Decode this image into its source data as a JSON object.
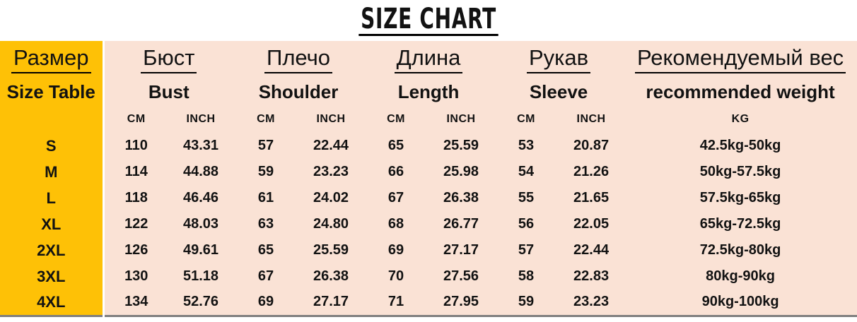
{
  "title": "SIZE CHART",
  "colors": {
    "accent_yellow": "#FEC106",
    "table_pink": "#FAE2D5",
    "bottom_border_gray": "#7f7f7f",
    "text_black": "#121212"
  },
  "header": {
    "size_ru": "Размер",
    "size_en": "Size Table",
    "groups": [
      {
        "ru": "Бюст",
        "en": "Bust"
      },
      {
        "ru": "Плечо",
        "en": "Shoulder"
      },
      {
        "ru": "Длина",
        "en": "Length"
      },
      {
        "ru": "Рукав",
        "en": "Sleeve"
      }
    ],
    "weight_ru": "Рекомендуемый вес",
    "weight_en": "recommended weight",
    "unit_cm": "CM",
    "unit_inch": "INCH",
    "unit_kg": "KG"
  },
  "chart_data": {
    "type": "table",
    "title": "SIZE CHART",
    "columns": [
      "Size",
      "Bust CM",
      "Bust INCH",
      "Shoulder CM",
      "Shoulder INCH",
      "Length CM",
      "Length INCH",
      "Sleeve CM",
      "Sleeve INCH",
      "recommended weight KG"
    ],
    "rows": [
      {
        "size": "S",
        "bust_cm": "110",
        "bust_in": "43.31",
        "shoulder_cm": "57",
        "shoulder_in": "22.44",
        "length_cm": "65",
        "length_in": "25.59",
        "sleeve_cm": "53",
        "sleeve_in": "20.87",
        "weight": "42.5kg-50kg"
      },
      {
        "size": "M",
        "bust_cm": "114",
        "bust_in": "44.88",
        "shoulder_cm": "59",
        "shoulder_in": "23.23",
        "length_cm": "66",
        "length_in": "25.98",
        "sleeve_cm": "54",
        "sleeve_in": "21.26",
        "weight": "50kg-57.5kg"
      },
      {
        "size": "L",
        "bust_cm": "118",
        "bust_in": "46.46",
        "shoulder_cm": "61",
        "shoulder_in": "24.02",
        "length_cm": "67",
        "length_in": "26.38",
        "sleeve_cm": "55",
        "sleeve_in": "21.65",
        "weight": "57.5kg-65kg"
      },
      {
        "size": "XL",
        "bust_cm": "122",
        "bust_in": "48.03",
        "shoulder_cm": "63",
        "shoulder_in": "24.80",
        "length_cm": "68",
        "length_in": "26.77",
        "sleeve_cm": "56",
        "sleeve_in": "22.05",
        "weight": "65kg-72.5kg"
      },
      {
        "size": "2XL",
        "bust_cm": "126",
        "bust_in": "49.61",
        "shoulder_cm": "65",
        "shoulder_in": "25.59",
        "length_cm": "69",
        "length_in": "27.17",
        "sleeve_cm": "57",
        "sleeve_in": "22.44",
        "weight": "72.5kg-80kg"
      },
      {
        "size": "3XL",
        "bust_cm": "130",
        "bust_in": "51.18",
        "shoulder_cm": "67",
        "shoulder_in": "26.38",
        "length_cm": "70",
        "length_in": "27.56",
        "sleeve_cm": "58",
        "sleeve_in": "22.83",
        "weight": "80kg-90kg"
      },
      {
        "size": "4XL",
        "bust_cm": "134",
        "bust_in": "52.76",
        "shoulder_cm": "69",
        "shoulder_in": "27.17",
        "length_cm": "71",
        "length_in": "27.95",
        "sleeve_cm": "59",
        "sleeve_in": "23.23",
        "weight": "90kg-100kg"
      }
    ]
  }
}
